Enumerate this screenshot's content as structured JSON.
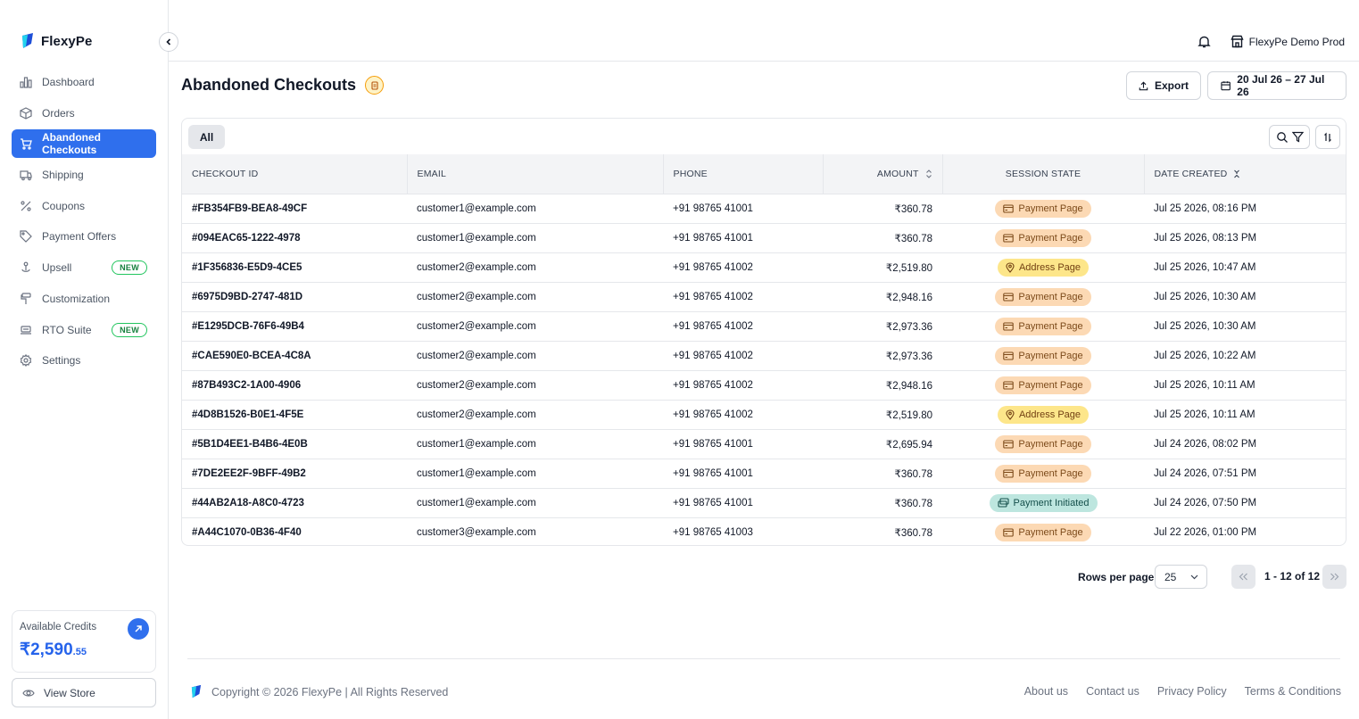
{
  "brand": {
    "name": "FlexyPe"
  },
  "header": {
    "store_name": "FlexyPe Demo Prod"
  },
  "sidebar": {
    "items": [
      {
        "label": "Dashboard",
        "icon": "bar-chart-icon"
      },
      {
        "label": "Orders",
        "icon": "box-icon"
      },
      {
        "label": "Abandoned Checkouts",
        "icon": "cart-icon",
        "active": true
      },
      {
        "label": "Shipping",
        "icon": "truck-icon"
      },
      {
        "label": "Coupons",
        "icon": "percent-icon"
      },
      {
        "label": "Payment Offers",
        "icon": "tag-icon"
      },
      {
        "label": "Upsell",
        "icon": "upsell-icon",
        "badge": "NEW"
      },
      {
        "label": "Customization",
        "icon": "paint-roller-icon"
      },
      {
        "label": "RTO Suite",
        "icon": "rto-icon",
        "badge": "NEW"
      },
      {
        "label": "Settings",
        "icon": "gear-icon"
      }
    ],
    "credits": {
      "label": "Available Credits",
      "amount_main": "₹2,590",
      "amount_decimal": ".55"
    },
    "view_store": "View Store"
  },
  "main": {
    "title": "Abandoned Checkouts",
    "export_label": "Export",
    "date_range": "20 Jul 26 – 27 Jul 26",
    "tab_all": "All",
    "columns": [
      "CHECKOUT ID",
      "EMAIL",
      "PHONE",
      "AMOUNT",
      "SESSION STATE",
      "DATE CREATED"
    ],
    "rows": [
      {
        "id": "#FB354FB9-BEA8-49CF",
        "email": "customer1@example.com",
        "phone": "+91 98765 41001",
        "amount": "₹360.78",
        "state": "Payment Page",
        "state_type": "pay",
        "date": "Jul 25 2026, 08:16 PM"
      },
      {
        "id": "#094EAC65-1222-4978",
        "email": "customer1@example.com",
        "phone": "+91 98765 41001",
        "amount": "₹360.78",
        "state": "Payment Page",
        "state_type": "pay",
        "date": "Jul 25 2026, 08:13 PM"
      },
      {
        "id": "#1F356836-E5D9-4CE5",
        "email": "customer2@example.com",
        "phone": "+91 98765 41002",
        "amount": "₹2,519.80",
        "state": "Address Page",
        "state_type": "addr",
        "date": "Jul 25 2026, 10:47 AM"
      },
      {
        "id": "#6975D9BD-2747-481D",
        "email": "customer2@example.com",
        "phone": "+91 98765 41002",
        "amount": "₹2,948.16",
        "state": "Payment Page",
        "state_type": "pay",
        "date": "Jul 25 2026, 10:30 AM"
      },
      {
        "id": "#E1295DCB-76F6-49B4",
        "email": "customer2@example.com",
        "phone": "+91 98765 41002",
        "amount": "₹2,973.36",
        "state": "Payment Page",
        "state_type": "pay",
        "date": "Jul 25 2026, 10:30 AM"
      },
      {
        "id": "#CAE590E0-BCEA-4C8A",
        "email": "customer2@example.com",
        "phone": "+91 98765 41002",
        "amount": "₹2,973.36",
        "state": "Payment Page",
        "state_type": "pay",
        "date": "Jul 25 2026, 10:22 AM"
      },
      {
        "id": "#87B493C2-1A00-4906",
        "email": "customer2@example.com",
        "phone": "+91 98765 41002",
        "amount": "₹2,948.16",
        "state": "Payment Page",
        "state_type": "pay",
        "date": "Jul 25 2026, 10:11 AM"
      },
      {
        "id": "#4D8B1526-B0E1-4F5E",
        "email": "customer2@example.com",
        "phone": "+91 98765 41002",
        "amount": "₹2,519.80",
        "state": "Address Page",
        "state_type": "addr",
        "date": "Jul 25 2026, 10:11 AM"
      },
      {
        "id": "#5B1D4EE1-B4B6-4E0B",
        "email": "customer1@example.com",
        "phone": "+91 98765 41001",
        "amount": "₹2,695.94",
        "state": "Payment Page",
        "state_type": "pay",
        "date": "Jul 24 2026, 08:02 PM"
      },
      {
        "id": "#7DE2EE2F-9BFF-49B2",
        "email": "customer1@example.com",
        "phone": "+91 98765 41001",
        "amount": "₹360.78",
        "state": "Payment Page",
        "state_type": "pay",
        "date": "Jul 24 2026, 07:51 PM"
      },
      {
        "id": "#44AB2A18-A8C0-4723",
        "email": "customer1@example.com",
        "phone": "+91 98765 41001",
        "amount": "₹360.78",
        "state": "Payment Initiated",
        "state_type": "init",
        "date": "Jul 24 2026, 07:50 PM"
      },
      {
        "id": "#A44C1070-0B36-4F40",
        "email": "customer3@example.com",
        "phone": "+91 98765 41003",
        "amount": "₹360.78",
        "state": "Payment Page",
        "state_type": "pay",
        "date": "Jul 22 2026, 01:00 PM"
      }
    ],
    "pagination": {
      "rows_per_page_label": "Rows per page",
      "rows_per_page": "25",
      "range": "1 - 12 of 12"
    }
  },
  "footer": {
    "copyright": "Copyright © 2026 FlexyPe | All Rights Reserved",
    "links": [
      "About us",
      "Contact us",
      "Privacy Policy",
      "Terms & Conditions"
    ]
  },
  "colors": {
    "accent": "#2f6fed",
    "payment_page": "#fcd9b4",
    "address_page": "#fde68a",
    "payment_initiated": "#bde6df"
  }
}
